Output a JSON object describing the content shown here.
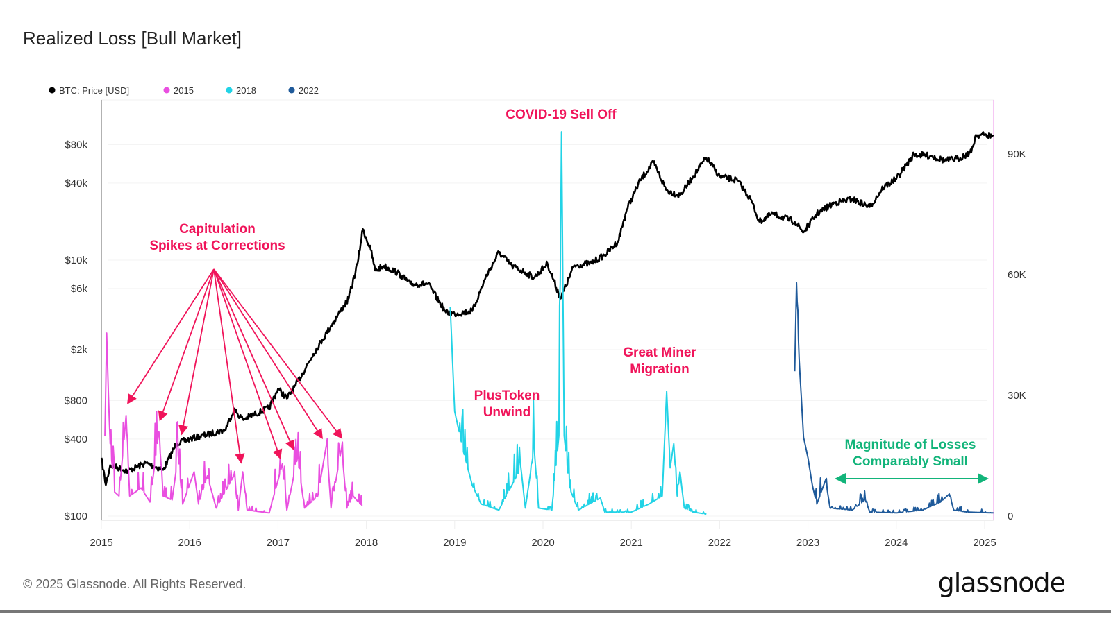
{
  "title": "Realized Loss [Bull Market]",
  "footer": {
    "copyright": "© 2025 Glassnode. All Rights Reserved.",
    "logo": "glassnode"
  },
  "chart_data": {
    "type": "line",
    "title": "Realized Loss [Bull Market]",
    "legend_position": "top-left",
    "legend": [
      {
        "name": "BTC: Price [USD]",
        "color": "#000000"
      },
      {
        "name": "2015",
        "color": "#e94fe0"
      },
      {
        "name": "2018",
        "color": "#22d3e6"
      },
      {
        "name": "2022",
        "color": "#1f5a9a"
      }
    ],
    "x_ticks": [
      "2015",
      "2016",
      "2017",
      "2018",
      "2019",
      "2020",
      "2021",
      "2022",
      "2023",
      "2024",
      "2025"
    ],
    "xlim": [
      2015,
      2025.1
    ],
    "left_axis": {
      "scale": "log",
      "ylim": [
        100,
        200000
      ],
      "ticks": [
        100,
        400,
        800,
        2000,
        6000,
        10000,
        40000,
        80000
      ],
      "tick_labels": [
        "$100",
        "$400",
        "$800",
        "$2k",
        "$6k",
        "$10k",
        "$40k",
        "$80k"
      ]
    },
    "right_axis": {
      "scale": "linear",
      "ylim": [
        0,
        104000
      ],
      "ticks": [
        0,
        30000,
        60000,
        90000
      ],
      "tick_labels": [
        "0",
        "30K",
        "60K",
        "90K"
      ]
    },
    "grid": true,
    "series": [
      {
        "name": "BTC: Price [USD]",
        "axis": "left",
        "color": "#000000",
        "points": [
          [
            2015.0,
            285
          ],
          [
            2015.05,
            175
          ],
          [
            2015.1,
            250
          ],
          [
            2015.3,
            225
          ],
          [
            2015.5,
            260
          ],
          [
            2015.7,
            230
          ],
          [
            2015.85,
            370
          ],
          [
            2016.0,
            400
          ],
          [
            2016.4,
            470
          ],
          [
            2016.5,
            680
          ],
          [
            2016.6,
            570
          ],
          [
            2016.9,
            700
          ],
          [
            2017.0,
            990
          ],
          [
            2017.1,
            830
          ],
          [
            2017.2,
            1050
          ],
          [
            2017.4,
            1850
          ],
          [
            2017.5,
            2380
          ],
          [
            2017.6,
            3070
          ],
          [
            2017.7,
            3930
          ],
          [
            2017.8,
            5000
          ],
          [
            2017.9,
            9400
          ],
          [
            2017.96,
            17500
          ],
          [
            2018.05,
            12000
          ],
          [
            2018.1,
            8300
          ],
          [
            2018.2,
            9000
          ],
          [
            2018.35,
            8000
          ],
          [
            2018.5,
            6500
          ],
          [
            2018.7,
            6500
          ],
          [
            2018.9,
            3900
          ],
          [
            2019.0,
            3800
          ],
          [
            2019.2,
            4000
          ],
          [
            2019.35,
            7300
          ],
          [
            2019.5,
            11500
          ],
          [
            2019.65,
            9000
          ],
          [
            2019.8,
            8000
          ],
          [
            2019.9,
            7300
          ],
          [
            2020.05,
            9400
          ],
          [
            2020.2,
            5000
          ],
          [
            2020.35,
            9000
          ],
          [
            2020.55,
            9500
          ],
          [
            2020.7,
            11000
          ],
          [
            2020.85,
            14000
          ],
          [
            2020.95,
            25000
          ],
          [
            2021.1,
            42000
          ],
          [
            2021.25,
            58000
          ],
          [
            2021.4,
            35000
          ],
          [
            2021.55,
            32000
          ],
          [
            2021.7,
            45000
          ],
          [
            2021.85,
            63000
          ],
          [
            2022.0,
            45000
          ],
          [
            2022.2,
            42000
          ],
          [
            2022.35,
            30000
          ],
          [
            2022.45,
            20000
          ],
          [
            2022.6,
            23000
          ],
          [
            2022.85,
            20000
          ],
          [
            2022.95,
            16500
          ],
          [
            2023.1,
            23000
          ],
          [
            2023.3,
            28000
          ],
          [
            2023.5,
            30000
          ],
          [
            2023.7,
            26000
          ],
          [
            2023.85,
            37000
          ],
          [
            2024.0,
            43000
          ],
          [
            2024.2,
            67000
          ],
          [
            2024.4,
            65000
          ],
          [
            2024.55,
            60000
          ],
          [
            2024.7,
            62000
          ],
          [
            2024.85,
            70000
          ],
          [
            2024.9,
            95000
          ],
          [
            2025.0,
            95000
          ],
          [
            2025.1,
            93000
          ]
        ]
      },
      {
        "name": "2015",
        "axis": "right",
        "color": "#e94fe0",
        "points": [
          [
            2015.04,
            20000
          ],
          [
            2015.06,
            45500
          ],
          [
            2015.08,
            30000
          ],
          [
            2015.1,
            18000
          ],
          [
            2015.15,
            6000
          ],
          [
            2015.2,
            5000
          ],
          [
            2015.28,
            25000
          ],
          [
            2015.32,
            5000
          ],
          [
            2015.45,
            7000
          ],
          [
            2015.55,
            3500
          ],
          [
            2015.65,
            21000
          ],
          [
            2015.7,
            5000
          ],
          [
            2015.8,
            4000
          ],
          [
            2015.87,
            15000
          ],
          [
            2015.92,
            3000
          ],
          [
            2016.05,
            11000
          ],
          [
            2016.1,
            3000
          ],
          [
            2016.2,
            10000
          ],
          [
            2016.3,
            2000
          ],
          [
            2016.5,
            10000
          ],
          [
            2016.55,
            1500
          ],
          [
            2016.6,
            11000
          ],
          [
            2016.65,
            1500
          ],
          [
            2016.9,
            800
          ],
          [
            2017.05,
            13000
          ],
          [
            2017.1,
            1500
          ],
          [
            2017.22,
            14500
          ],
          [
            2017.3,
            2000
          ],
          [
            2017.45,
            5000
          ],
          [
            2017.55,
            18000
          ],
          [
            2017.6,
            2000
          ],
          [
            2017.72,
            17000
          ],
          [
            2017.78,
            2000
          ],
          [
            2017.85,
            5000
          ],
          [
            2017.95,
            2500
          ]
        ]
      },
      {
        "name": "2018",
        "axis": "right",
        "color": "#22d3e6",
        "points": [
          [
            2018.95,
            52000
          ],
          [
            2019.0,
            26000
          ],
          [
            2019.05,
            21000
          ],
          [
            2019.1,
            16000
          ],
          [
            2019.2,
            7600
          ],
          [
            2019.3,
            3000
          ],
          [
            2019.5,
            1500
          ],
          [
            2019.75,
            12000
          ],
          [
            2019.8,
            2000
          ],
          [
            2019.9,
            17000
          ],
          [
            2019.95,
            2000
          ],
          [
            2020.1,
            1500
          ],
          [
            2020.18,
            20000
          ],
          [
            2020.21,
            95500
          ],
          [
            2020.24,
            20000
          ],
          [
            2020.3,
            7000
          ],
          [
            2020.4,
            1500
          ],
          [
            2020.65,
            4500
          ],
          [
            2020.7,
            1000
          ],
          [
            2021.0,
            1000
          ],
          [
            2021.2,
            3000
          ],
          [
            2021.35,
            5000
          ],
          [
            2021.4,
            31000
          ],
          [
            2021.44,
            12000
          ],
          [
            2021.48,
            18000
          ],
          [
            2021.52,
            5000
          ],
          [
            2021.55,
            11000
          ],
          [
            2021.6,
            2000
          ],
          [
            2021.7,
            1000
          ],
          [
            2021.85,
            500
          ]
        ]
      },
      {
        "name": "2022",
        "axis": "right",
        "color": "#1f5a9a",
        "points": [
          [
            2022.85,
            36000
          ],
          [
            2022.87,
            58000
          ],
          [
            2022.9,
            39000
          ],
          [
            2022.95,
            19600
          ],
          [
            2023.0,
            14500
          ],
          [
            2023.05,
            7600
          ],
          [
            2023.1,
            3000
          ],
          [
            2023.2,
            9000
          ],
          [
            2023.25,
            2000
          ],
          [
            2023.5,
            1500
          ],
          [
            2023.65,
            4000
          ],
          [
            2023.7,
            1000
          ],
          [
            2024.0,
            800
          ],
          [
            2024.3,
            1500
          ],
          [
            2024.5,
            3500
          ],
          [
            2024.6,
            5500
          ],
          [
            2024.65,
            1500
          ],
          [
            2024.8,
            1000
          ],
          [
            2025.1,
            800
          ]
        ]
      }
    ],
    "annotations": [
      {
        "text": [
          "Capitulation",
          "Spikes at Corrections"
        ],
        "color": "#f0145a"
      },
      {
        "text": [
          "COVID-19 Sell Off"
        ],
        "color": "#f0145a"
      },
      {
        "text": [
          "PlusToken",
          "Unwind"
        ],
        "color": "#f0145a"
      },
      {
        "text": [
          "Great Miner",
          "Migration"
        ],
        "color": "#f0145a"
      },
      {
        "text": [
          "Magnitude of Losses",
          "Comparably Small"
        ],
        "color": "#12b47a"
      }
    ]
  }
}
